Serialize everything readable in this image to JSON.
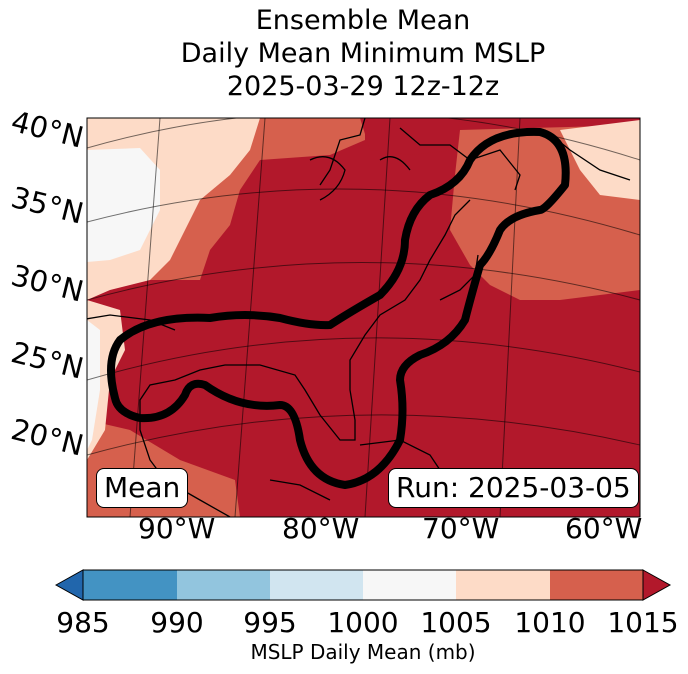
{
  "title": {
    "line1": "Ensemble Mean",
    "line2": "Daily Mean Minimum MSLP",
    "line3": "2025-03-29 12z-12z"
  },
  "map": {
    "lat_labels": [
      "40°N",
      "35°N",
      "30°N",
      "25°N",
      "20°N"
    ],
    "lon_labels": [
      "90°W",
      "80°W",
      "70°W",
      "60°W"
    ],
    "mean_label": "Mean",
    "run_label": "Run: 2025-03-05",
    "field_colors": {
      "1000-1005": "#f7f7f7",
      "1005-1010": "#fddbc7",
      "1010-1015": "#d6604d",
      "over-1015": "#b2182b"
    },
    "contour_color": "#000000"
  },
  "colorbar": {
    "ticks": [
      "985",
      "990",
      "995",
      "1000",
      "1005",
      "1010",
      "1015"
    ],
    "colors": [
      "#2166ac",
      "#4393c3",
      "#92c5de",
      "#d1e5f0",
      "#f7f7f7",
      "#fddbc7",
      "#d6604d",
      "#b2182b"
    ],
    "label": "MSLP Daily Mean (mb)"
  }
}
